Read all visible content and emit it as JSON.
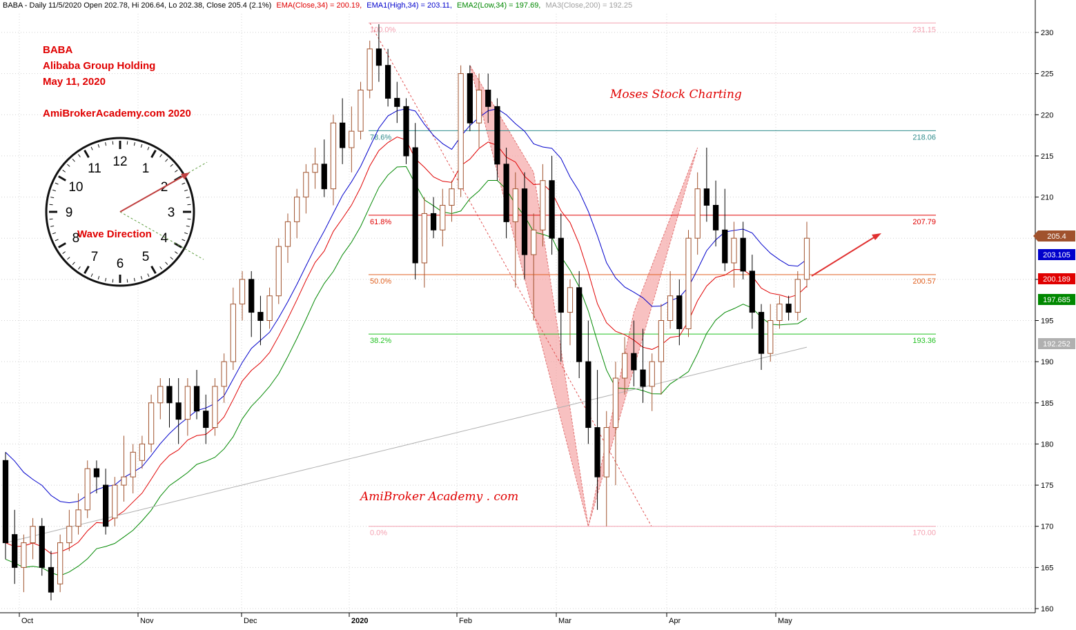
{
  "header": {
    "prefix": "BABA - Daily 11/5/2020 Open 202.78, Hi 206.64, Lo 202.38, Close 205.4 (2.1%)",
    "ema": "EMA(Close,34) = 200.19,",
    "ema1": "EMA1(High,34) = 203.11,",
    "ema2": "EMA2(Low,34) = 197.69,",
    "ma3": "MA3(Close,200) = 192.25"
  },
  "annotations": {
    "ticker": "BABA",
    "company": "Alibaba Group Holding",
    "date": "May 11, 2020",
    "site": "AmiBrokerAcademy.com  2020",
    "moses": "Moses Stock Charting",
    "watermark": "AmiBroker Academy . com",
    "wave_direction": "Wave Direction"
  },
  "clock": {
    "numbers": [
      "12",
      "1",
      "2",
      "3",
      "4",
      "5",
      "6",
      "7",
      "8",
      "9",
      "10",
      "11"
    ]
  },
  "colors": {
    "bull_candle": "#a0522d",
    "bear_candle": "#000000",
    "ema": "#e00000",
    "ema_high": "#0000cc",
    "ema_low": "#008800",
    "ma200": "#b0b0b0",
    "pattern_fill": "#f4a0a0",
    "accent": "#e00000"
  },
  "chart_data": {
    "type": "candlestick",
    "symbol": "BABA",
    "ylim": [
      160,
      232
    ],
    "y_ticks": [
      160,
      165,
      170,
      175,
      180,
      185,
      190,
      195,
      200,
      205,
      210,
      215,
      220,
      225,
      230
    ],
    "x_labels": [
      "Oct",
      "Nov",
      "Dec",
      "2020",
      "Feb",
      "Mar",
      "Apr",
      "May"
    ],
    "fibonacci": [
      {
        "label": "100.0%",
        "value": 231.15,
        "value_label": "231.15",
        "color": "#f4a0b0"
      },
      {
        "label": "78.6%",
        "value": 218.06,
        "value_label": "218.06",
        "color": "#2e8b8b"
      },
      {
        "label": "61.8%",
        "value": 207.79,
        "value_label": "207.79",
        "color": "#e00000"
      },
      {
        "label": "50.0%",
        "value": 200.57,
        "value_label": "200.57",
        "color": "#e06020"
      },
      {
        "label": "38.2%",
        "value": 193.36,
        "value_label": "193.36",
        "color": "#20c020"
      },
      {
        "label": "0.0%",
        "value": 170.0,
        "value_label": "170.00",
        "color": "#f4a0b0"
      }
    ],
    "right_badges": [
      {
        "label": "205.4",
        "value": 205.4,
        "color": "#a0522d"
      },
      {
        "label": "203.105",
        "value": 203.105,
        "color": "#0000cc"
      },
      {
        "label": "200.189",
        "value": 200.189,
        "color": "#e00000"
      },
      {
        "label": "197.685",
        "value": 197.685,
        "color": "#008800"
      },
      {
        "label": "192.252",
        "value": 192.252,
        "color": "#b0b0b0"
      }
    ],
    "candles": [
      [
        178,
        179,
        166,
        168
      ],
      [
        169,
        172,
        163,
        165
      ],
      [
        165,
        169,
        162,
        168
      ],
      [
        168,
        171,
        166,
        170
      ],
      [
        170,
        171,
        164,
        165
      ],
      [
        165,
        167,
        161,
        162
      ],
      [
        163,
        169,
        162,
        168
      ],
      [
        168,
        172,
        167,
        170
      ],
      [
        170,
        174,
        169,
        172
      ],
      [
        172,
        178,
        171,
        177
      ],
      [
        177,
        178,
        174,
        176
      ],
      [
        175,
        177,
        169,
        170
      ],
      [
        171,
        176,
        170,
        175
      ],
      [
        175,
        181,
        173,
        176
      ],
      [
        176,
        180,
        174,
        179
      ],
      [
        178,
        181,
        177,
        180
      ],
      [
        180,
        186,
        179,
        185
      ],
      [
        185,
        188,
        183,
        187
      ],
      [
        187,
        188,
        182,
        185
      ],
      [
        185,
        188,
        180,
        183
      ],
      [
        183,
        188,
        181,
        187
      ],
      [
        187,
        189,
        183,
        184
      ],
      [
        184,
        186,
        180,
        182
      ],
      [
        182,
        188,
        181,
        187
      ],
      [
        187,
        191,
        185,
        190
      ],
      [
        190,
        199,
        189,
        197
      ],
      [
        197,
        201,
        195,
        200
      ],
      [
        200,
        201,
        193,
        196
      ],
      [
        196,
        198,
        192,
        195
      ],
      [
        195,
        199,
        194,
        198
      ],
      [
        198,
        205,
        197,
        204
      ],
      [
        204,
        208,
        202,
        207
      ],
      [
        207,
        211,
        205,
        210
      ],
      [
        210,
        214,
        208,
        213
      ],
      [
        213,
        216,
        211,
        214
      ],
      [
        214,
        217,
        210,
        211
      ],
      [
        211,
        220,
        209,
        219
      ],
      [
        219,
        222,
        214,
        216
      ],
      [
        216,
        221,
        213,
        218
      ],
      [
        218,
        224,
        217,
        223
      ],
      [
        223,
        229,
        222,
        228
      ],
      [
        228,
        231,
        224,
        226
      ],
      [
        226,
        228,
        221,
        222
      ],
      [
        222,
        224,
        219,
        221
      ],
      [
        221,
        222,
        214,
        215
      ],
      [
        216,
        219,
        200,
        202
      ],
      [
        202,
        210,
        199,
        208
      ],
      [
        208,
        210,
        205,
        206
      ],
      [
        206,
        211,
        204,
        209
      ],
      [
        209,
        212,
        207,
        211
      ],
      [
        211,
        226,
        210,
        225
      ],
      [
        225,
        226,
        218,
        219
      ],
      [
        219,
        225,
        216,
        223
      ],
      [
        223,
        225,
        219,
        221
      ],
      [
        221,
        222,
        212,
        214
      ],
      [
        214,
        216,
        205,
        207
      ],
      [
        207,
        213,
        199,
        211
      ],
      [
        211,
        213,
        200,
        203
      ],
      [
        203,
        208,
        195,
        206
      ],
      [
        206,
        214,
        204,
        212
      ],
      [
        212,
        215,
        203,
        205
      ],
      [
        205,
        208,
        190,
        196
      ],
      [
        196,
        200,
        192,
        199
      ],
      [
        199,
        201,
        188,
        190
      ],
      [
        190,
        195,
        180,
        182
      ],
      [
        182,
        189,
        172,
        176
      ],
      [
        176,
        184,
        170,
        182
      ],
      [
        182,
        190,
        175,
        188
      ],
      [
        188,
        193,
        186,
        191
      ],
      [
        191,
        195,
        187,
        189
      ],
      [
        189,
        194,
        185,
        187
      ],
      [
        187,
        191,
        184,
        190
      ],
      [
        190,
        197,
        186,
        195
      ],
      [
        195,
        201,
        194,
        198
      ],
      [
        198,
        200,
        192,
        194
      ],
      [
        194,
        206,
        193,
        205
      ],
      [
        205,
        213,
        203,
        211
      ],
      [
        211,
        216,
        207,
        209
      ],
      [
        209,
        212,
        204,
        206
      ],
      [
        206,
        211,
        201,
        202
      ],
      [
        202,
        207,
        199,
        205
      ],
      [
        205,
        207,
        200,
        201
      ],
      [
        201,
        203,
        194,
        196
      ],
      [
        196,
        197,
        189,
        191
      ],
      [
        191,
        197,
        190,
        195
      ],
      [
        195,
        198,
        194,
        197
      ],
      [
        197,
        198,
        195,
        196
      ],
      [
        196,
        201,
        195,
        200
      ],
      [
        200,
        207,
        199,
        205
      ]
    ]
  }
}
